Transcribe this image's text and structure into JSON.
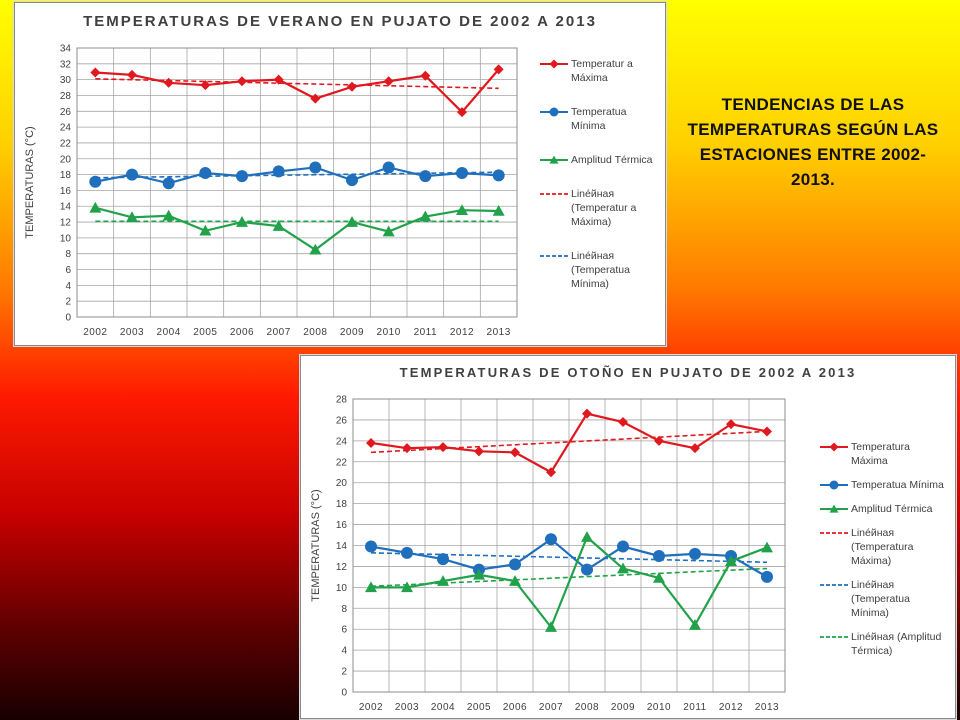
{
  "slide": {
    "heading": "TENDENCIAS  DE LAS TEMPERATURAS SEGÚN LAS ESTACIONES ENTRE 2002-2013."
  },
  "colors": {
    "max": "#e0191f",
    "min": "#1f6fbd",
    "amplitude": "#21a24a",
    "grid": "#a6a6a6",
    "axis_text": "#404040"
  },
  "chart_data": [
    {
      "id": "summer",
      "type": "line",
      "title": "TEMPERATURAS DE VERANO EN PUJATO DE 2002 A 2013",
      "xlabel": "",
      "ylabel": "TEMPERATURAS (°C)",
      "x": [
        "2002",
        "2003",
        "2004",
        "2005",
        "2006",
        "2007",
        "2008",
        "2009",
        "2010",
        "2011",
        "2012",
        "2013"
      ],
      "ylim": [
        0,
        34
      ],
      "ytick_step": 2,
      "grid": true,
      "legend_position": "right",
      "series": [
        {
          "name": "Temperatur a Máxima",
          "color_key": "max",
          "marker": "diamond",
          "values": [
            30.9,
            30.6,
            29.6,
            29.3,
            29.8,
            30.0,
            27.6,
            29.1,
            29.8,
            30.5,
            25.9,
            31.3
          ]
        },
        {
          "name": "Temperatua Mínima",
          "color_key": "min",
          "marker": "circle",
          "values": [
            17.1,
            18.0,
            16.9,
            18.2,
            17.8,
            18.4,
            18.9,
            17.3,
            18.9,
            17.8,
            18.2,
            17.9
          ]
        },
        {
          "name": "Amplitud Térmica",
          "color_key": "amplitude",
          "marker": "triangle",
          "values": [
            13.8,
            12.6,
            12.8,
            10.9,
            12.0,
            11.5,
            8.5,
            12.0,
            10.8,
            12.7,
            13.5,
            13.4
          ]
        }
      ],
      "trendlines": [
        {
          "name": "Linéйная (Temperatur a Máxima)",
          "color_key": "max",
          "start": 30.1,
          "end": 28.9
        },
        {
          "name": "Linéйная (Temperatua Mínima)",
          "color_key": "min",
          "start": 17.6,
          "end": 18.3
        },
        {
          "color_key": "amplitude",
          "start": 12.1,
          "end": 12.1
        }
      ],
      "legend": [
        {
          "text": "Temperatur a Máxima",
          "color_key": "max",
          "style": "marker",
          "marker": "diamond"
        },
        {
          "text": "Temperatua Mínima",
          "color_key": "min",
          "style": "marker",
          "marker": "circle"
        },
        {
          "text": "Amplitud Térmica",
          "color_key": "amplitude",
          "style": "marker",
          "marker": "triangle"
        },
        {
          "text": "Linéйная (Temperatur a Máxima)",
          "color_key": "max",
          "style": "dash"
        },
        {
          "text": "Linéйная (Temperatua Mínima)",
          "color_key": "min",
          "style": "dash"
        }
      ]
    },
    {
      "id": "autumn",
      "type": "line",
      "title": "TEMPERATURAS DE OTOÑO EN PUJATO DE 2002 A 2013",
      "xlabel": "",
      "ylabel": "TEMPERATURAS (°C)",
      "x": [
        "2002",
        "2003",
        "2004",
        "2005",
        "2006",
        "2007",
        "2008",
        "2009",
        "2010",
        "2011",
        "2012",
        "2013"
      ],
      "ylim": [
        0,
        28
      ],
      "ytick_step": 2,
      "grid": true,
      "legend_position": "right",
      "series": [
        {
          "name": "Temperatura Máxima",
          "color_key": "max",
          "marker": "diamond",
          "values": [
            23.8,
            23.3,
            23.4,
            23.0,
            22.9,
            21.0,
            26.6,
            25.8,
            24.0,
            23.3,
            25.6,
            24.9
          ]
        },
        {
          "name": "Temperatua Mínima",
          "color_key": "min",
          "marker": "circle",
          "values": [
            13.9,
            13.3,
            12.7,
            11.7,
            12.2,
            14.6,
            11.7,
            13.9,
            13.0,
            13.2,
            13.0,
            11.0
          ]
        },
        {
          "name": "Amplitud Térmica",
          "color_key": "amplitude",
          "marker": "triangle",
          "values": [
            10.0,
            10.0,
            10.6,
            11.2,
            10.6,
            6.2,
            14.8,
            11.8,
            10.9,
            6.4,
            12.5,
            13.8
          ]
        }
      ],
      "trendlines": [
        {
          "name": "Linéйная (Temperatura Máxima)",
          "color_key": "max",
          "start": 22.9,
          "end": 24.9
        },
        {
          "name": "Linéйная (Temperatua Mínima)",
          "color_key": "min",
          "start": 13.3,
          "end": 12.4
        },
        {
          "name": "Linéйная (Amplitud Térmica)",
          "color_key": "amplitude",
          "start": 10.1,
          "end": 11.8
        }
      ],
      "legend": [
        {
          "text": "Temperatura Máxima",
          "color_key": "max",
          "style": "marker",
          "marker": "diamond"
        },
        {
          "text": "Temperatua Mínima",
          "color_key": "min",
          "style": "marker",
          "marker": "circle"
        },
        {
          "text": "Amplitud Térmica",
          "color_key": "amplitude",
          "style": "marker",
          "marker": "triangle"
        },
        {
          "text": "Linéйная (Temperatura Máxima)",
          "color_key": "max",
          "style": "dash"
        },
        {
          "text": "Linéйная (Temperatua Mínima)",
          "color_key": "min",
          "style": "dash"
        },
        {
          "text": "Linéйная (Amplitud Térmica)",
          "color_key": "amplitude",
          "style": "dash"
        }
      ]
    }
  ]
}
